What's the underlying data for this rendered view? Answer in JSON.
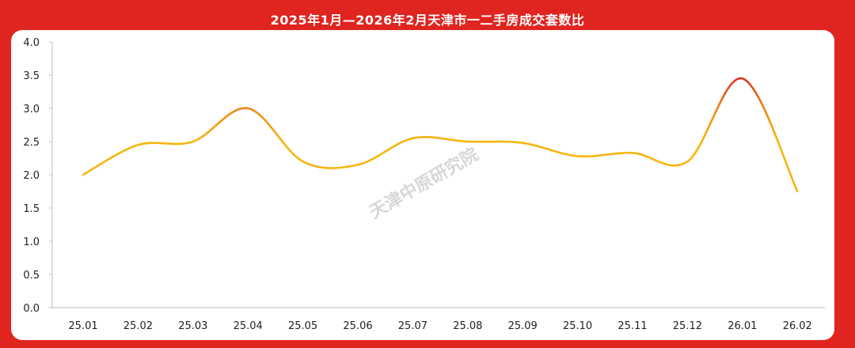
{
  "chart_data": {
    "type": "line",
    "title": "2025年1月—2026年2月天津市一二手房成交套数比",
    "watermark": "天津中原研究院",
    "categories": [
      "25.01",
      "25.02",
      "25.03",
      "25.04",
      "25.05",
      "25.06",
      "25.07",
      "25.08",
      "25.09",
      "25.10",
      "25.11",
      "25.12",
      "26.01",
      "26.02"
    ],
    "series": [
      {
        "values": [
          2.0,
          2.45,
          2.5,
          3.0,
          2.2,
          2.15,
          2.55,
          2.5,
          2.48,
          2.28,
          2.33,
          2.2,
          3.45,
          1.75
        ]
      }
    ],
    "ylim": [
      0,
      4
    ],
    "yticks": [
      "0.0",
      "0.5",
      "1.0",
      "1.5",
      "2.0",
      "2.5",
      "3.0",
      "3.5",
      "4.0"
    ],
    "grid": false,
    "colors": {
      "low": "#f5b60f",
      "high": "#e02a1f",
      "axis": "#bfbfbf",
      "frame": "#e0241f"
    }
  }
}
